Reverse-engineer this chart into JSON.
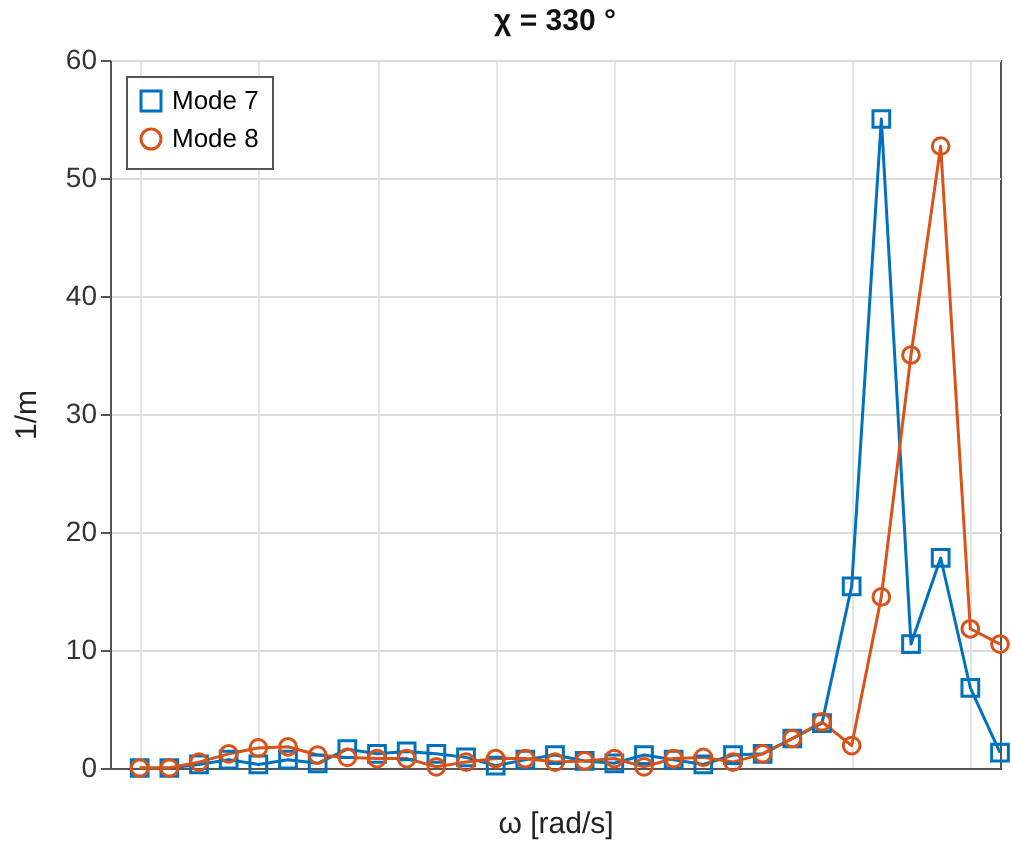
{
  "chart_data": {
    "type": "line",
    "title": "χ = 330 °",
    "xlabel": "ω [rad/s]",
    "ylabel": "1/m",
    "categories": [
      null,
      null,
      null,
      null,
      null,
      null,
      null,
      null,
      null,
      null,
      null,
      null,
      null,
      null,
      null,
      null,
      null,
      null,
      null,
      null,
      null,
      null,
      null,
      null,
      null,
      null,
      null,
      null,
      null,
      null
    ],
    "series": [
      {
        "name": "Mode 7",
        "color": "#0072bd",
        "marker": "square",
        "values": [
          0,
          0,
          0.3,
          0.7,
          0.3,
          0.7,
          0.4,
          1.6,
          1.2,
          1.4,
          1.2,
          0.9,
          0.2,
          0.7,
          1.1,
          0.6,
          0.4,
          1.1,
          0.7,
          0.3,
          1.1,
          1.2,
          2.5,
          3.8,
          15.4,
          55.0,
          10.5,
          17.8,
          6.8,
          1.3
        ]
      },
      {
        "name": "Mode 8",
        "color": "#d95319",
        "marker": "circle",
        "values": [
          0,
          0,
          0.5,
          1.2,
          1.7,
          1.8,
          1.1,
          0.9,
          0.8,
          0.8,
          0.1,
          0.5,
          0.8,
          0.8,
          0.5,
          0.6,
          0.8,
          0.1,
          0.8,
          0.9,
          0.5,
          1.2,
          2.5,
          3.9,
          1.9,
          14.5,
          35.0,
          52.7,
          11.8,
          10.5
        ]
      }
    ],
    "ylim": [
      0,
      60
    ],
    "yticks": [
      0,
      10,
      20,
      30,
      40,
      50,
      60
    ],
    "grid": true,
    "legend": "top left",
    "line_style": "solid"
  }
}
